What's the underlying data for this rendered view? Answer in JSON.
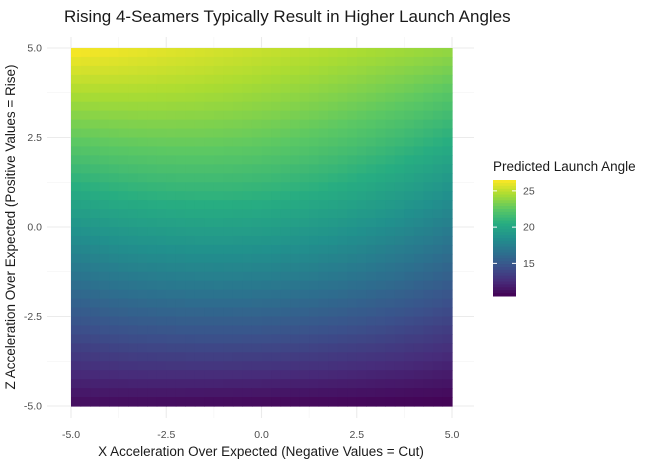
{
  "chart_data": {
    "type": "heatmap",
    "title": "Rising 4-Seamers Typically Result in Higher Launch Angles",
    "xlabel": "X Acceleration Over Expected (Negative Values = Cut)",
    "ylabel": "Z Acceleration Over Expected (Positive Values = Rise)",
    "xlim": [
      -5.0,
      5.0
    ],
    "ylim": [
      -5.0,
      5.0
    ],
    "x_ticks": [
      -5.0,
      -2.5,
      0.0,
      2.5,
      5.0
    ],
    "x_tick_labels": [
      "-5.0",
      "-2.5",
      "0.0",
      "2.5",
      "5.0"
    ],
    "y_ticks": [
      -5.0,
      -2.5,
      0.0,
      2.5,
      5.0
    ],
    "y_tick_labels": [
      "-5.0",
      "-2.5",
      "0.0",
      "2.5",
      "5.0"
    ],
    "grid": true,
    "colorscale": "viridis",
    "z_corners": {
      "top_left": 26.5,
      "top_right": 24.0,
      "bottom_left": 11.0,
      "bottom_right": 10.5,
      "center": 19.5
    },
    "legend": {
      "title": "Predicted Launch Angle",
      "position": "right",
      "range": [
        10.5,
        26.5
      ],
      "ticks": [
        15,
        20,
        25
      ],
      "tick_labels": [
        "15",
        "20",
        "25"
      ]
    }
  }
}
